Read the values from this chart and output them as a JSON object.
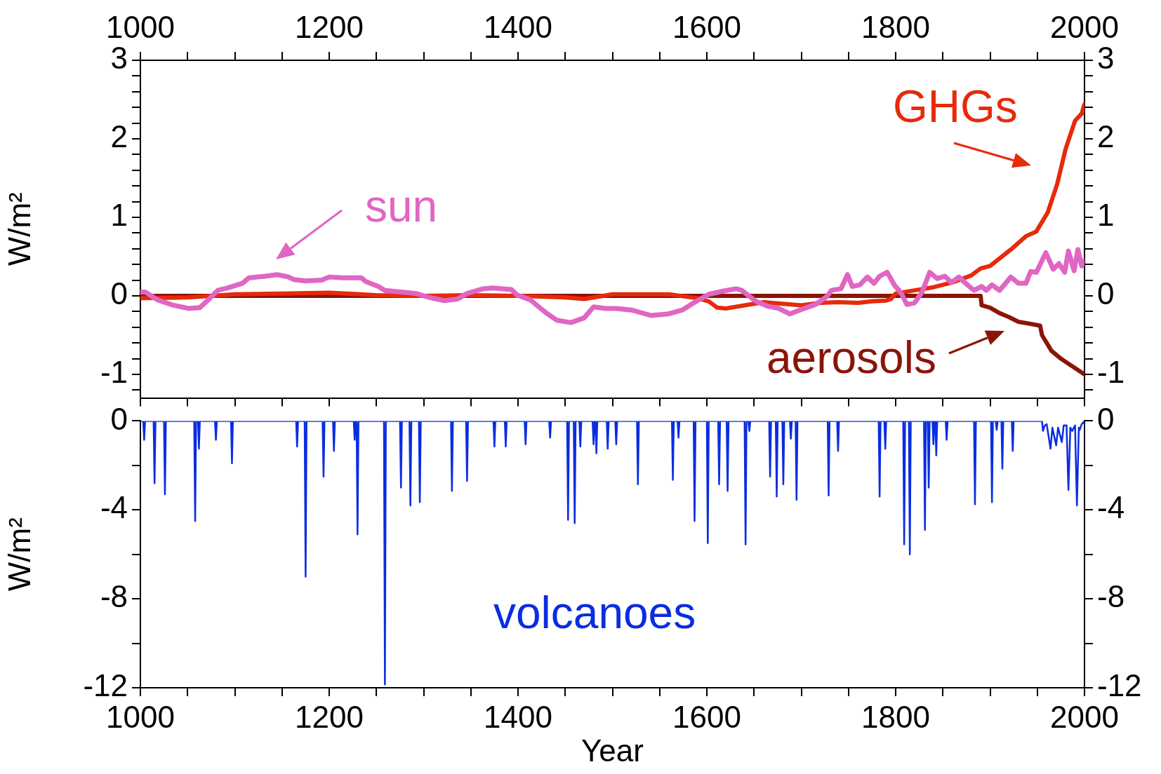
{
  "chart_data": [
    {
      "type": "line",
      "ylabel": "W/m²",
      "grid": false,
      "xlim": [
        1000,
        2000
      ],
      "xticks": [
        1000,
        {
          "value": 1050,
          "label": null
        },
        {
          "value": 1100,
          "label": null
        },
        {
          "value": 1150,
          "label": null
        },
        1200,
        {
          "value": 1250,
          "label": null
        },
        {
          "value": 1300,
          "label": null
        },
        {
          "value": 1350,
          "label": null
        },
        1400,
        {
          "value": 1450,
          "label": null
        },
        {
          "value": 1500,
          "label": null
        },
        {
          "value": 1550,
          "label": null
        },
        1600,
        {
          "value": 1650,
          "label": null
        },
        {
          "value": 1700,
          "label": null
        },
        {
          "value": 1750,
          "label": null
        },
        1800,
        {
          "value": 1850,
          "label": null
        },
        {
          "value": 1900,
          "label": null
        },
        {
          "value": 1950,
          "label": null
        },
        2000
      ],
      "ylim": [
        -1.3,
        3
      ],
      "yticks": [
        {
          "value": -1.2,
          "label": null
        },
        -1,
        {
          "value": -0.8,
          "label": null
        },
        {
          "value": -0.6,
          "label": null
        },
        {
          "value": -0.4,
          "label": null
        },
        {
          "value": -0.2,
          "label": null
        },
        0,
        {
          "value": 0.2,
          "label": null
        },
        {
          "value": 0.4,
          "label": null
        },
        {
          "value": 0.6,
          "label": null
        },
        {
          "value": 0.8,
          "label": null
        },
        1,
        {
          "value": 1.2,
          "label": null
        },
        {
          "value": 1.4,
          "label": null
        },
        {
          "value": 1.6,
          "label": null
        },
        {
          "value": 1.8,
          "label": null
        },
        2,
        {
          "value": 2.2,
          "label": null
        },
        {
          "value": 2.4,
          "label": null
        },
        {
          "value": 2.6,
          "label": null
        },
        {
          "value": 2.8,
          "label": null
        },
        3
      ],
      "y2lim": [
        -1.3,
        3
      ],
      "y2ticks": [
        {
          "value": -1.2,
          "label": null
        },
        -1,
        {
          "value": -0.8,
          "label": null
        },
        {
          "value": -0.6,
          "label": null
        },
        {
          "value": -0.4,
          "label": null
        },
        {
          "value": -0.2,
          "label": null
        },
        0,
        {
          "value": 0.2,
          "label": null
        },
        {
          "value": 0.4,
          "label": null
        },
        {
          "value": 0.6,
          "label": null
        },
        {
          "value": 0.8,
          "label": null
        },
        1,
        {
          "value": 1.2,
          "label": null
        },
        {
          "value": 1.4,
          "label": null
        },
        {
          "value": 1.6,
          "label": null
        },
        {
          "value": 1.8,
          "label": null
        },
        2,
        {
          "value": 2.2,
          "label": null
        },
        {
          "value": 2.4,
          "label": null
        },
        {
          "value": 2.6,
          "label": null
        },
        {
          "value": 2.8,
          "label": null
        },
        3
      ],
      "series": [
        {
          "name": "sun",
          "color": "#e066c4",
          "x": [
            1000,
            1005,
            1018,
            1035,
            1051,
            1063,
            1072,
            1082,
            1092,
            1108,
            1115,
            1132,
            1145,
            1157,
            1162,
            1175,
            1192,
            1200,
            1215,
            1234,
            1239,
            1252,
            1259,
            1276,
            1292,
            1306,
            1322,
            1336,
            1346,
            1363,
            1373,
            1393,
            1399,
            1413,
            1419,
            1429,
            1441,
            1456,
            1470,
            1480,
            1493,
            1504,
            1520,
            1541,
            1559,
            1574,
            1586,
            1602,
            1617,
            1631,
            1637,
            1652,
            1664,
            1676,
            1688,
            1703,
            1715,
            1727,
            1732,
            1742,
            1749,
            1754,
            1762,
            1770,
            1777,
            1783,
            1791,
            1799,
            1805,
            1812,
            1820,
            1828,
            1836,
            1844,
            1852,
            1859,
            1867,
            1875,
            1883,
            1891,
            1896,
            1902,
            1910,
            1922,
            1930,
            1938,
            1943,
            1949,
            1959,
            1967,
            1973,
            1979,
            1983,
            1989,
            1993,
            1997,
            2000
          ],
          "values": [
            0.05,
            0.05,
            -0.05,
            -0.12,
            -0.16,
            -0.15,
            -0.05,
            0.07,
            0.1,
            0.16,
            0.23,
            0.25,
            0.27,
            0.24,
            0.21,
            0.19,
            0.2,
            0.24,
            0.23,
            0.23,
            0.18,
            0.12,
            0.07,
            0.05,
            0.03,
            -0.02,
            -0.06,
            -0.04,
            0.03,
            0.09,
            0.1,
            0.08,
            0.01,
            -0.05,
            -0.11,
            -0.21,
            -0.31,
            -0.34,
            -0.28,
            -0.14,
            -0.16,
            -0.16,
            -0.18,
            -0.25,
            -0.23,
            -0.18,
            -0.09,
            0.02,
            0.06,
            0.09,
            0.07,
            -0.07,
            -0.13,
            -0.16,
            -0.23,
            -0.16,
            -0.11,
            -0.01,
            0.07,
            0.09,
            0.27,
            0.12,
            0.14,
            0.24,
            0.16,
            0.25,
            0.3,
            0.13,
            0.05,
            -0.11,
            -0.09,
            0.05,
            0.3,
            0.22,
            0.25,
            0.17,
            0.24,
            0.15,
            0.07,
            0.12,
            0.07,
            0.14,
            0.07,
            0.24,
            0.16,
            0.16,
            0.31,
            0.3,
            0.55,
            0.34,
            0.41,
            0.3,
            0.57,
            0.32,
            0.59,
            0.38,
            0.45
          ]
        },
        {
          "name": "GHGs",
          "color": "#e62a0a",
          "x": [
            1000,
            1050,
            1100,
            1150,
            1200,
            1250,
            1300,
            1350,
            1400,
            1450,
            1470,
            1500,
            1560,
            1590,
            1602,
            1611,
            1620,
            1640,
            1660,
            1680,
            1700,
            1720,
            1740,
            1760,
            1775,
            1790,
            1795,
            1800,
            1820,
            1840,
            1860,
            1880,
            1890,
            1900,
            1922,
            1938,
            1949,
            1961,
            1971,
            1980,
            1990,
            1997,
            2000
          ],
          "values": [
            -0.03,
            -0.02,
            0.02,
            0.03,
            0.04,
            0.01,
            0,
            0.01,
            0,
            -0.02,
            -0.04,
            0.02,
            0.02,
            -0.03,
            -0.07,
            -0.15,
            -0.16,
            -0.12,
            -0.08,
            -0.1,
            -0.12,
            -0.09,
            -0.08,
            -0.09,
            -0.07,
            -0.06,
            -0.04,
            0.03,
            0.07,
            0.11,
            0.17,
            0.26,
            0.35,
            0.38,
            0.59,
            0.76,
            0.82,
            1.06,
            1.42,
            1.87,
            2.23,
            2.32,
            2.44
          ]
        },
        {
          "name": "aerosols",
          "color": "#8b1408",
          "x": [
            1000,
            1890,
            1891,
            1900,
            1910,
            1920,
            1930,
            1940,
            1953,
            1955,
            1965,
            1975,
            1990,
            2000
          ],
          "values": [
            0,
            0,
            -0.12,
            -0.15,
            -0.22,
            -0.27,
            -0.33,
            -0.35,
            -0.38,
            -0.5,
            -0.7,
            -0.8,
            -0.92,
            -1
          ]
        }
      ]
    },
    {
      "type": "line",
      "xlabel": "Year",
      "ylabel": "W/m²",
      "grid": false,
      "xlim": [
        1000,
        2000
      ],
      "xticks": [
        1000,
        {
          "value": 1050,
          "label": null
        },
        {
          "value": 1100,
          "label": null
        },
        {
          "value": 1150,
          "label": null
        },
        1200,
        {
          "value": 1250,
          "label": null
        },
        {
          "value": 1300,
          "label": null
        },
        {
          "value": 1350,
          "label": null
        },
        1400,
        {
          "value": 1450,
          "label": null
        },
        {
          "value": 1500,
          "label": null
        },
        {
          "value": 1550,
          "label": null
        },
        1600,
        {
          "value": 1650,
          "label": null
        },
        {
          "value": 1700,
          "label": null
        },
        {
          "value": 1750,
          "label": null
        },
        1800,
        {
          "value": 1850,
          "label": null
        },
        {
          "value": 1900,
          "label": null
        },
        {
          "value": 1950,
          "label": null
        },
        2000
      ],
      "ylim": [
        -12,
        0
      ],
      "yticks": [
        -12,
        {
          "value": -10,
          "label": null
        },
        -8,
        {
          "value": -6,
          "label": null
        },
        -4,
        {
          "value": -2,
          "label": null
        },
        0
      ],
      "y2lim": [
        -12,
        0
      ],
      "y2ticks": [
        -12,
        {
          "value": -10,
          "label": null
        },
        -8,
        {
          "value": -6,
          "label": null
        },
        -4,
        {
          "value": -2,
          "label": null
        },
        0
      ],
      "series": [
        {
          "name": "volcanoes",
          "color": "#0a2de0",
          "x": [
            1000,
            1003,
            1004,
            1005,
            1014,
            1015,
            1016,
            1025,
            1026,
            1027,
            1057,
            1058,
            1059,
            1061,
            1062,
            1063,
            1079,
            1080,
            1081,
            1096,
            1097,
            1098,
            1165,
            1166,
            1167,
            1174,
            1175,
            1176,
            1193,
            1194,
            1195,
            1204,
            1205,
            1206,
            1226,
            1227,
            1228,
            1229,
            1230,
            1231,
            1258,
            1259,
            1260,
            1275,
            1276,
            1277,
            1285,
            1286,
            1287,
            1295,
            1296,
            1297,
            1329,
            1330,
            1331,
            1345,
            1346,
            1347,
            1374,
            1375,
            1376,
            1386,
            1387,
            1388,
            1407,
            1408,
            1409,
            1433,
            1434,
            1435,
            1452,
            1453,
            1454,
            1459,
            1460,
            1461,
            1465,
            1466,
            1467,
            1479,
            1480,
            1481,
            1482,
            1483,
            1484,
            1494,
            1495,
            1496,
            1503,
            1504,
            1505,
            1526,
            1527,
            1528,
            1563,
            1564,
            1565,
            1569,
            1570,
            1571,
            1586,
            1587,
            1588,
            1600,
            1601,
            1602,
            1612,
            1613,
            1614,
            1621,
            1622,
            1623,
            1640,
            1641,
            1642,
            1644,
            1645,
            1646,
            1666,
            1667,
            1668,
            1673,
            1674,
            1675,
            1680,
            1681,
            1682,
            1688,
            1689,
            1690,
            1694,
            1695,
            1696,
            1728,
            1729,
            1730,
            1738,
            1739,
            1740,
            1782,
            1783,
            1784,
            1788,
            1789,
            1790,
            1808,
            1809,
            1810,
            1814,
            1815,
            1816,
            1830,
            1831,
            1832,
            1834,
            1835,
            1836,
            1839,
            1840,
            1841,
            1842,
            1843,
            1844,
            1853,
            1854,
            1855,
            1883,
            1884,
            1885,
            1901,
            1902,
            1903,
            1906,
            1907,
            1908,
            1912,
            1913,
            1914,
            1923,
            1924,
            1925,
            1955,
            1956,
            1958,
            1960,
            1964,
            1966,
            1970,
            1972,
            1976,
            1978,
            1981,
            1983,
            1985,
            1987,
            1990,
            1992,
            1994,
            1995,
            1997,
            1998,
            2000
          ],
          "values": [
            0,
            0,
            -0.85,
            0,
            0,
            -2.8,
            0,
            0,
            -3.3,
            0,
            0,
            -4.5,
            0,
            0,
            -1.25,
            0,
            0,
            -0.85,
            0,
            0,
            -1.9,
            0,
            0,
            -1.15,
            0,
            0,
            -7,
            0,
            0,
            -2.5,
            0,
            0,
            -1.35,
            0,
            0,
            -0.85,
            0,
            0,
            -5.1,
            0,
            0,
            -11.85,
            0,
            0,
            -3,
            0,
            0,
            -3.8,
            0,
            0,
            -3.65,
            0,
            0,
            -3.15,
            0,
            0,
            -2.7,
            0,
            0,
            -1.15,
            0,
            0,
            -1.15,
            0,
            0,
            -1.05,
            0,
            0,
            -0.75,
            0,
            0,
            -4.45,
            0,
            0,
            -4.6,
            0,
            0,
            -1.15,
            0,
            0,
            -1.05,
            0,
            0,
            -1.45,
            0,
            0,
            -1.25,
            0,
            0,
            -1.05,
            0,
            0,
            -2.85,
            0,
            0,
            -2.65,
            0,
            0,
            -0.75,
            0,
            0,
            -4.5,
            0,
            0,
            -5.5,
            0,
            0,
            -2.85,
            0,
            0,
            -3.15,
            0,
            0,
            -5.55,
            0,
            0,
            -0.45,
            0,
            0,
            -2.5,
            0,
            0,
            -3.4,
            0,
            0,
            -2.85,
            0,
            0,
            -0.8,
            0,
            0,
            -3.55,
            0,
            0,
            -3.35,
            0,
            0,
            -1.35,
            0,
            0,
            -3.4,
            0,
            0,
            -1.25,
            0,
            0,
            -5.55,
            0,
            0,
            -6,
            0,
            0,
            -4.9,
            0,
            0,
            -3,
            0,
            0,
            -1.05,
            0,
            0,
            -1.55,
            0,
            0,
            -0.85,
            0,
            0,
            -3.75,
            0,
            0,
            -3.65,
            0,
            0,
            -0.4,
            0,
            0,
            -2.15,
            0,
            0,
            -1.35,
            0,
            0,
            -0.45,
            -0.2,
            -0.15,
            -1.25,
            -0.3,
            -1.1,
            -0.3,
            -0.95,
            -0.2,
            -0.2,
            -3.1,
            -0.3,
            -0.45,
            -0.2,
            -3.8,
            -0.3,
            -0.4,
            -0.15,
            -0.1,
            0
          ]
        }
      ]
    }
  ]
}
